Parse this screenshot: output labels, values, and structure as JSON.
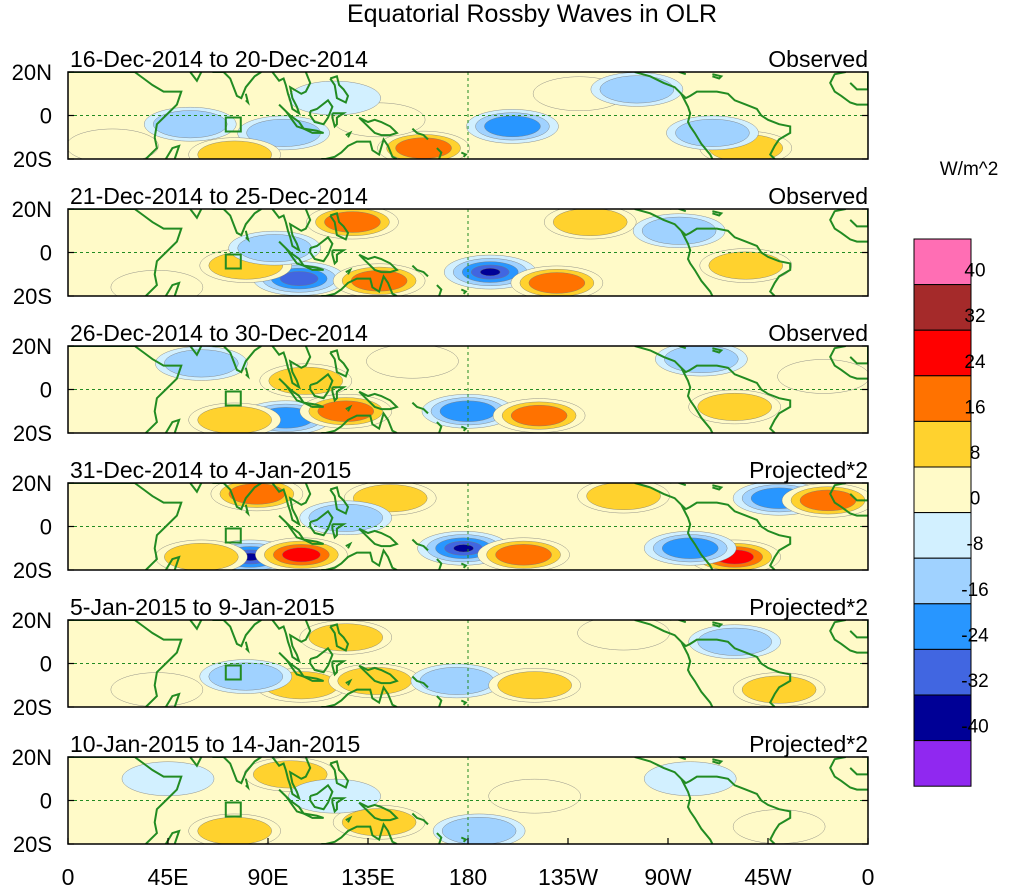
{
  "chart_data": {
    "type": "heatmap",
    "title": "Equatorial Rossby Waves in OLR",
    "units_label": "W/m^2",
    "x_ticks": [
      "0",
      "45E",
      "90E",
      "135E",
      "180",
      "135W",
      "90W",
      "45W",
      "0"
    ],
    "y_ticks": [
      "20N",
      "0",
      "20S"
    ],
    "xlim": [
      0,
      360
    ],
    "ylim": [
      -20,
      20
    ],
    "colorbar": {
      "levels": [
        "40",
        "32",
        "24",
        "16",
        "8",
        "0",
        "-8",
        "-16",
        "-24",
        "-32",
        "-40"
      ],
      "colors": [
        "#ff6eb4",
        "#a52a2a",
        "#ff0000",
        "#ff7200",
        "#ffd22e",
        "#fffac8",
        "#d2f0ff",
        "#a0d2ff",
        "#2896ff",
        "#4166e1",
        "#000096",
        "#9028f0"
      ]
    },
    "panels": [
      {
        "date_range": "16-Dec-2014 to 20-Dec-2014",
        "label": "Observed",
        "anomalies": [
          {
            "lon": 160,
            "lat": -15,
            "v": 22
          },
          {
            "lon": 200,
            "lat": -5,
            "v": -22
          },
          {
            "lon": 97,
            "lat": -8,
            "v": -14
          },
          {
            "lon": 55,
            "lat": -4,
            "v": -14
          },
          {
            "lon": 140,
            "lat": -2,
            "v": 8
          },
          {
            "lon": 75,
            "lat": -18,
            "v": 10
          },
          {
            "lon": 230,
            "lat": 10,
            "v": 8
          },
          {
            "lon": 305,
            "lat": -15,
            "v": 12
          },
          {
            "lon": 290,
            "lat": -8,
            "v": -10
          },
          {
            "lon": 20,
            "lat": -14,
            "v": 6
          },
          {
            "lon": 256,
            "lat": 12,
            "v": -10
          },
          {
            "lon": 120,
            "lat": 8,
            "v": -8
          }
        ]
      },
      {
        "date_range": "21-Dec-2014 to 25-Dec-2014",
        "label": "Observed",
        "anomalies": [
          {
            "lon": 190,
            "lat": -9,
            "v": -34
          },
          {
            "lon": 220,
            "lat": -14,
            "v": 20
          },
          {
            "lon": 104,
            "lat": -12,
            "v": -26
          },
          {
            "lon": 128,
            "lat": 14,
            "v": 22
          },
          {
            "lon": 140,
            "lat": -13,
            "v": 18
          },
          {
            "lon": 80,
            "lat": -6,
            "v": 10
          },
          {
            "lon": 40,
            "lat": -16,
            "v": 8
          },
          {
            "lon": 305,
            "lat": -6,
            "v": 10
          },
          {
            "lon": 235,
            "lat": 14,
            "v": 12
          },
          {
            "lon": 275,
            "lat": 10,
            "v": -10
          },
          {
            "lon": 93,
            "lat": 2,
            "v": -12
          }
        ]
      },
      {
        "date_range": "26-Dec-2014 to 30-Dec-2014",
        "label": "Observed",
        "anomalies": [
          {
            "lon": 180,
            "lat": -10,
            "v": -24
          },
          {
            "lon": 212,
            "lat": -12,
            "v": 22
          },
          {
            "lon": 98,
            "lat": -13,
            "v": -24
          },
          {
            "lon": 125,
            "lat": -10,
            "v": 20
          },
          {
            "lon": 107,
            "lat": 4,
            "v": 10
          },
          {
            "lon": 285,
            "lat": 14,
            "v": -14
          },
          {
            "lon": 300,
            "lat": -8,
            "v": 12
          },
          {
            "lon": 340,
            "lat": 6,
            "v": 8
          },
          {
            "lon": 75,
            "lat": -14,
            "v": 12
          },
          {
            "lon": 60,
            "lat": 12,
            "v": -10
          },
          {
            "lon": 155,
            "lat": 13,
            "v": 8
          }
        ]
      },
      {
        "date_range": "31-Dec-2014 to 4-Jan-2015",
        "label": "Projected*2",
        "anomalies": [
          {
            "lon": 178,
            "lat": -10,
            "v": -34
          },
          {
            "lon": 205,
            "lat": -13,
            "v": 24
          },
          {
            "lon": 82,
            "lat": -14,
            "v": -34
          },
          {
            "lon": 105,
            "lat": -13,
            "v": 28
          },
          {
            "lon": 145,
            "lat": 13,
            "v": 16
          },
          {
            "lon": 85,
            "lat": 15,
            "v": 18
          },
          {
            "lon": 300,
            "lat": -14,
            "v": 30
          },
          {
            "lon": 280,
            "lat": -10,
            "v": -24
          },
          {
            "lon": 320,
            "lat": 13,
            "v": -20
          },
          {
            "lon": 342,
            "lat": 12,
            "v": 22
          },
          {
            "lon": 60,
            "lat": -14,
            "v": 10
          },
          {
            "lon": 250,
            "lat": 14,
            "v": 10
          },
          {
            "lon": 125,
            "lat": 4,
            "v": -10
          }
        ]
      },
      {
        "date_range": "5-Jan-2015 to 9-Jan-2015",
        "label": "Projected*2",
        "anomalies": [
          {
            "lon": 105,
            "lat": -10,
            "v": 12
          },
          {
            "lon": 138,
            "lat": -8,
            "v": 10
          },
          {
            "lon": 175,
            "lat": -8,
            "v": -12
          },
          {
            "lon": 210,
            "lat": -10,
            "v": 12
          },
          {
            "lon": 80,
            "lat": -6,
            "v": -10
          },
          {
            "lon": 125,
            "lat": 12,
            "v": 10
          },
          {
            "lon": 300,
            "lat": 10,
            "v": -10
          },
          {
            "lon": 320,
            "lat": -12,
            "v": 10
          },
          {
            "lon": 250,
            "lat": 14,
            "v": 8
          },
          {
            "lon": 40,
            "lat": -12,
            "v": 6
          }
        ]
      },
      {
        "date_range": "10-Jan-2015 to 14-Jan-2015",
        "label": "Projected*2",
        "anomalies": [
          {
            "lon": 100,
            "lat": 12,
            "v": 10
          },
          {
            "lon": 140,
            "lat": -10,
            "v": 12
          },
          {
            "lon": 185,
            "lat": -14,
            "v": -10
          },
          {
            "lon": 210,
            "lat": 2,
            "v": 8
          },
          {
            "lon": 75,
            "lat": -14,
            "v": 10
          },
          {
            "lon": 280,
            "lat": 10,
            "v": -8
          },
          {
            "lon": 320,
            "lat": -12,
            "v": 8
          },
          {
            "lon": 120,
            "lat": 2,
            "v": -8
          },
          {
            "lon": 45,
            "lat": 10,
            "v": -6
          }
        ]
      }
    ]
  }
}
